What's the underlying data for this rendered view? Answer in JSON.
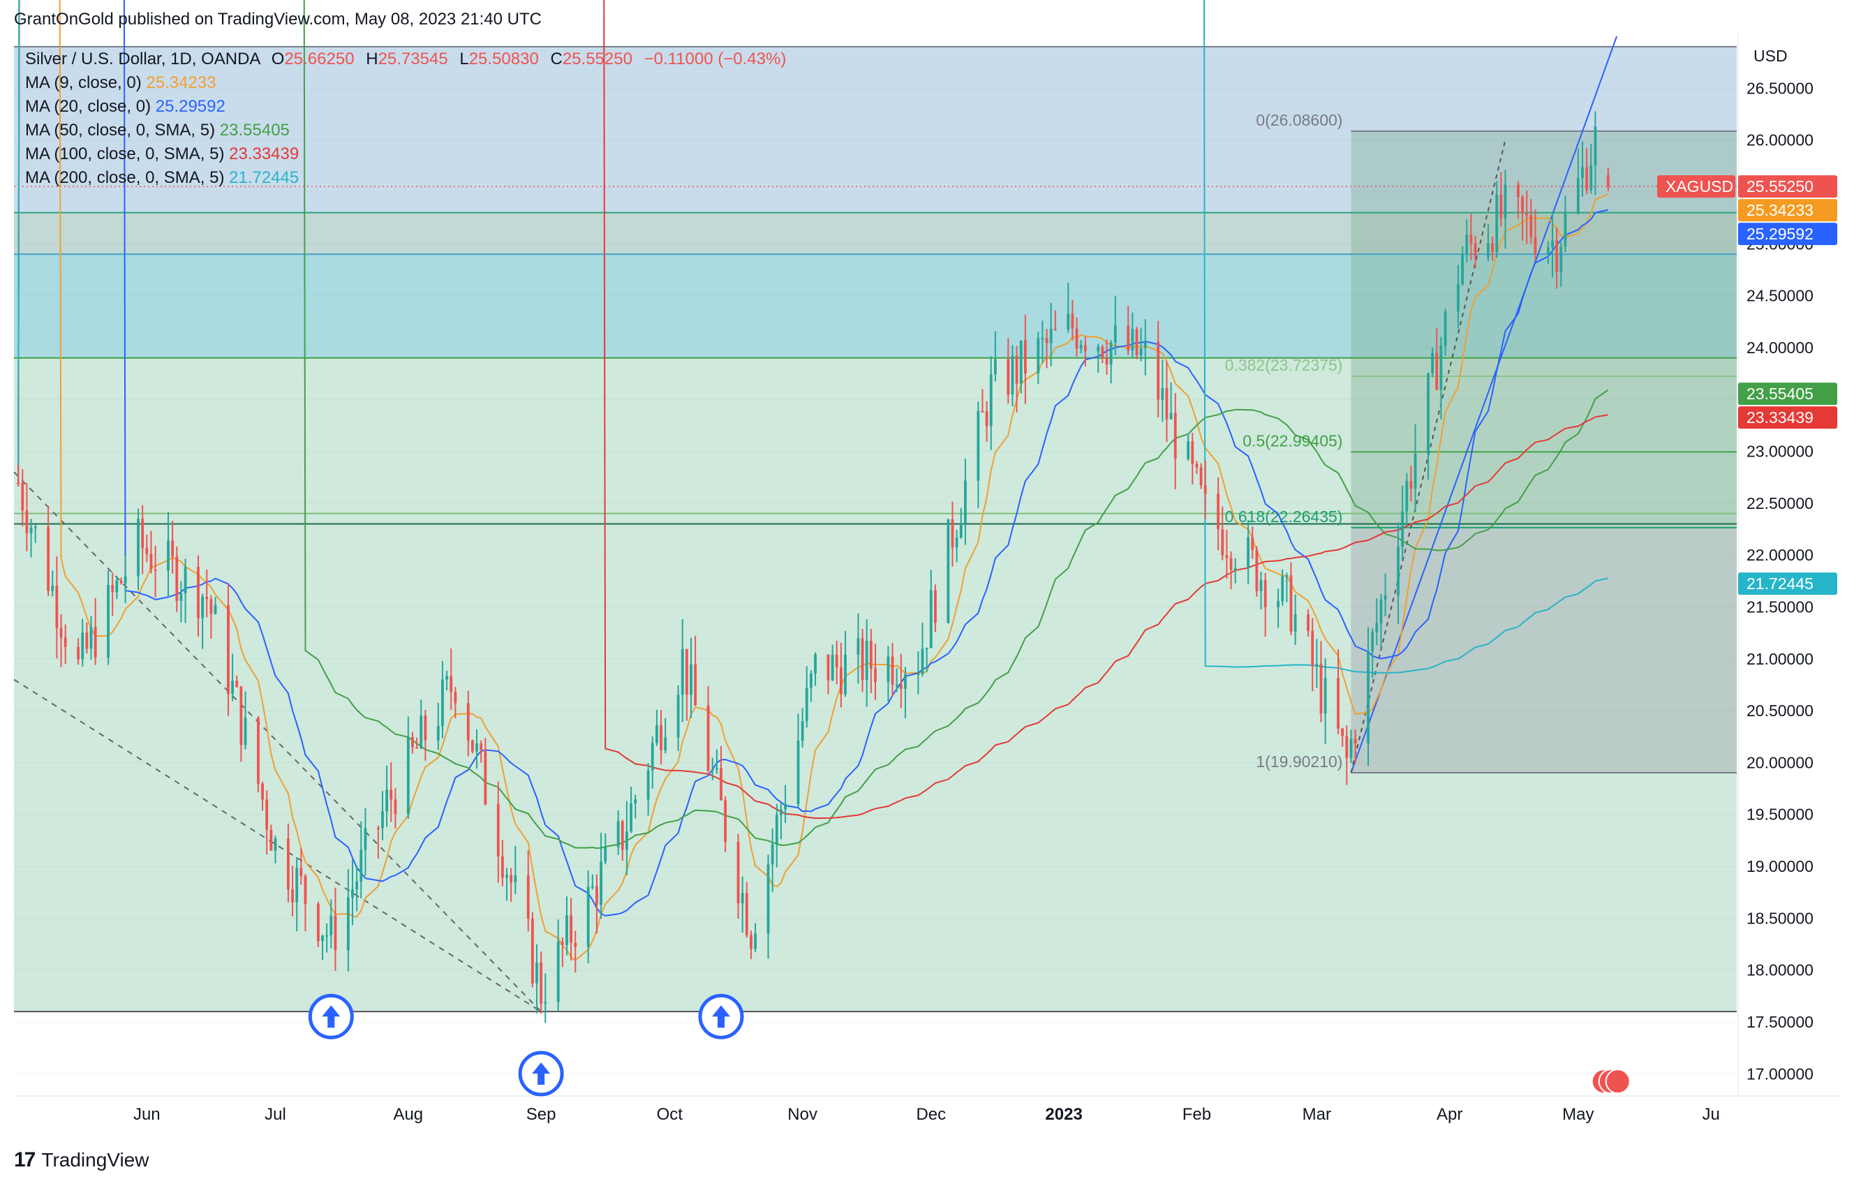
{
  "header": {
    "text": "GrantOnGold published on TradingView.com, May 08, 2023 21:40 UTC"
  },
  "legend": {
    "symbol": "Silver / U.S. Dollar, 1D, OANDA",
    "ohlc": {
      "o_label": "O",
      "o": "25.66250",
      "h_label": "H",
      "h": "25.73545",
      "l_label": "L",
      "l": "25.50830",
      "c_label": "C",
      "c": "25.55250",
      "change": "−0.11000 (−0.43%)"
    },
    "mas": [
      {
        "label": "MA (9, close, 0)",
        "value": "25.34233",
        "color": "#f0a030"
      },
      {
        "label": "MA (20, close, 0)",
        "value": "25.29592",
        "color": "#2962ff"
      },
      {
        "label": "MA (50, close, 0, SMA, 5)",
        "value": "23.55405",
        "color": "#43a047"
      },
      {
        "label": "MA (100, close, 0, SMA, 5)",
        "value": "23.33439",
        "color": "#e53935"
      },
      {
        "label": "MA (200, close, 0, SMA, 5)",
        "value": "21.72445",
        "color": "#26b5c9"
      }
    ]
  },
  "price_axis": {
    "currency": "USD",
    "ticks": [
      "26.50000",
      "26.00000",
      "25.00000",
      "24.50000",
      "24.00000",
      "23.00000",
      "22.50000",
      "22.00000",
      "21.50000",
      "21.00000",
      "20.50000",
      "20.00000",
      "19.50000",
      "19.00000",
      "18.50000",
      "18.00000",
      "17.50000",
      "17.00000"
    ],
    "badges": [
      {
        "text": "XAGUSD",
        "value": "25.55250",
        "color": "#ef5350"
      },
      {
        "value": "25.34233",
        "color": "#f59b22"
      },
      {
        "value": "25.29592",
        "color": "#2962ff"
      },
      {
        "value": "23.55405",
        "color": "#43a047"
      },
      {
        "value": "23.33439",
        "color": "#e53935"
      },
      {
        "value": "21.72445",
        "color": "#26b5c9"
      }
    ]
  },
  "time_axis": {
    "labels": [
      "Jun",
      "Jul",
      "Aug",
      "Sep",
      "Oct",
      "Nov",
      "Dec",
      "2023",
      "Feb",
      "Mar",
      "Apr",
      "May",
      "Ju"
    ]
  },
  "fibonacci": [
    {
      "label": "0(26.08600)"
    },
    {
      "label": "0.382(23.72375)"
    },
    {
      "label": "0.5(22.99405)"
    },
    {
      "label": "0.618(22.26435)"
    },
    {
      "label": "1(19.90210)"
    }
  ],
  "footer": {
    "logo": "17",
    "brand": "TradingView"
  },
  "colors": {
    "up": "#26a69a",
    "down": "#ef5350",
    "bg_blue": "#c9dcec",
    "bg_teal": "#a9dbe0",
    "bg_green": "#cfe9dd"
  },
  "chart_data": {
    "type": "candlestick",
    "title": "Silver / U.S. Dollar, 1D, OANDA",
    "ylabel": "USD",
    "ylim": [
      16.8,
      27.0
    ],
    "x_range": [
      "2022-05-01",
      "2023-06-07"
    ],
    "last_close": 25.5525,
    "key_points": [
      {
        "date": "2022-05-02",
        "close": 22.7
      },
      {
        "date": "2022-05-16",
        "close": 20.9
      },
      {
        "date": "2022-05-30",
        "close": 22.1
      },
      {
        "date": "2022-06-15",
        "close": 21.6
      },
      {
        "date": "2022-07-01",
        "close": 19.2
      },
      {
        "date": "2022-07-14",
        "close": 18.3
      },
      {
        "date": "2022-07-27",
        "close": 19.6
      },
      {
        "date": "2022-08-12",
        "close": 20.8
      },
      {
        "date": "2022-09-01",
        "close": 17.8
      },
      {
        "date": "2022-09-20",
        "close": 19.3
      },
      {
        "date": "2022-10-04",
        "close": 21.0
      },
      {
        "date": "2022-10-20",
        "close": 18.4
      },
      {
        "date": "2022-11-04",
        "close": 20.9
      },
      {
        "date": "2022-11-28",
        "close": 21.0
      },
      {
        "date": "2022-12-15",
        "close": 23.6
      },
      {
        "date": "2023-01-03",
        "close": 24.2
      },
      {
        "date": "2023-01-20",
        "close": 23.9
      },
      {
        "date": "2023-02-03",
        "close": 22.4
      },
      {
        "date": "2023-02-23",
        "close": 21.5
      },
      {
        "date": "2023-03-08",
        "close": 20.0
      },
      {
        "date": "2023-03-20",
        "close": 22.3
      },
      {
        "date": "2023-04-04",
        "close": 24.9
      },
      {
        "date": "2023-04-14",
        "close": 25.3
      },
      {
        "date": "2023-04-26",
        "close": 25.0
      },
      {
        "date": "2023-05-05",
        "close": 26.0
      },
      {
        "date": "2023-05-08",
        "close": 25.55
      }
    ],
    "moving_averages": [
      {
        "name": "MA (9, close, 0)",
        "last": 25.34233
      },
      {
        "name": "MA (20, close, 0)",
        "last": 25.29592
      },
      {
        "name": "MA (50, close, 0, SMA, 5)",
        "last": 23.55405
      },
      {
        "name": "MA (100, close, 0, SMA, 5)",
        "last": 23.33439
      },
      {
        "name": "MA (200, close, 0, SMA, 5)",
        "last": 21.72445
      }
    ],
    "fib_levels": [
      26.086,
      23.72375,
      22.99405,
      22.26435,
      19.9021
    ],
    "horizontal_lines": [
      26.9,
      25.3,
      24.9,
      23.9,
      22.4,
      22.3,
      17.6
    ]
  }
}
